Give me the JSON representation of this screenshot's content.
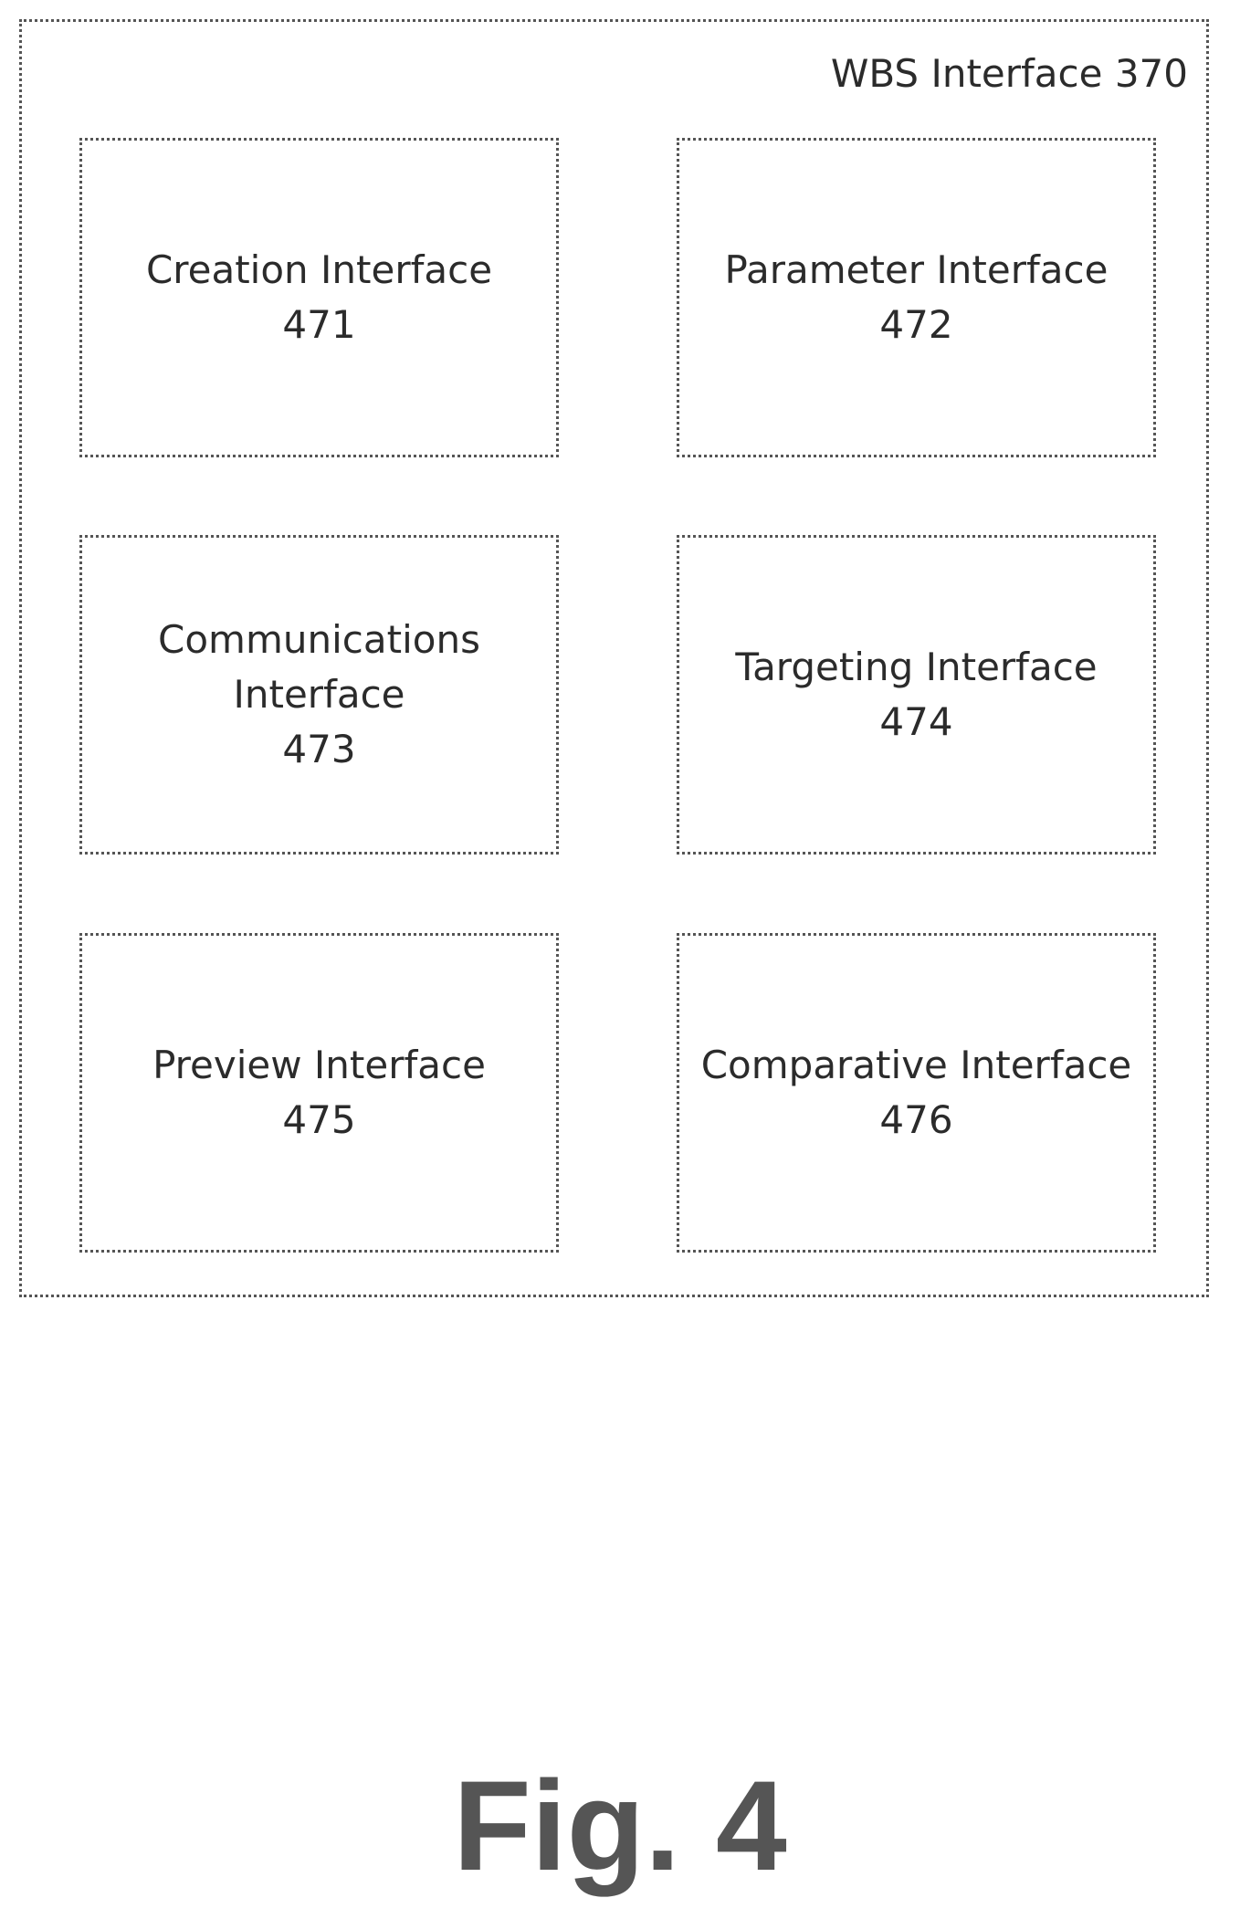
{
  "diagram": {
    "container": {
      "label": "WBS Interface 370"
    },
    "boxes": [
      {
        "name": "Creation Interface",
        "number": "471"
      },
      {
        "name": "Parameter Interface",
        "number": "472"
      },
      {
        "name_line1": "Communications",
        "name_line2": "Interface",
        "number": "473"
      },
      {
        "name": "Targeting Interface",
        "number": "474"
      },
      {
        "name": "Preview Interface",
        "number": "475"
      },
      {
        "name": "Comparative Interface",
        "number": "476"
      }
    ]
  },
  "figure_label": "Fig. 4"
}
